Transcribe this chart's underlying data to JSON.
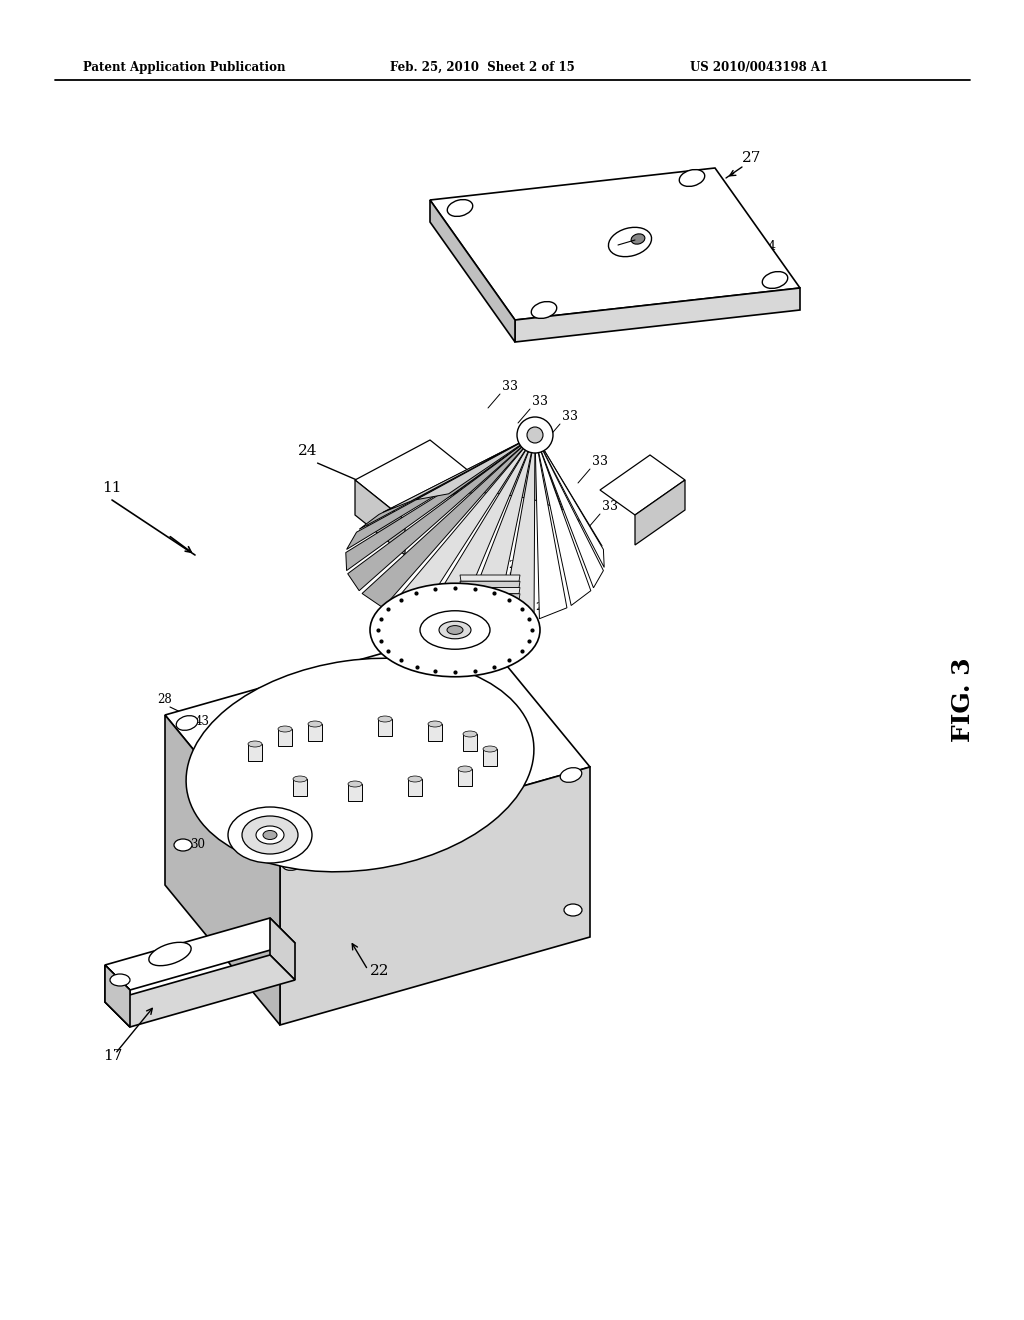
{
  "header_left": "Patent Application Publication",
  "header_middle": "Feb. 25, 2010  Sheet 2 of 15",
  "header_right": "US 2010/0043198 A1",
  "figure_label": "FIG. 3",
  "background_color": "#ffffff",
  "line_color": "#000000",
  "fig_width": 10.24,
  "fig_height": 13.2
}
